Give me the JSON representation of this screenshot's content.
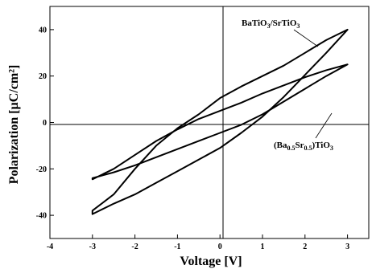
{
  "chart_data": {
    "type": "line",
    "xlabel": "Voltage [V]",
    "ylabel": "Polarization [µC/cm²]",
    "xlim": [
      -4,
      3.5
    ],
    "ylim": [
      -50,
      50
    ],
    "x_ticks": [
      "-4",
      "-3",
      "-2",
      "-1",
      "0",
      "1",
      "2",
      "3"
    ],
    "y_ticks": [
      "40",
      "20",
      "0",
      "-20",
      "-40"
    ],
    "grid": false,
    "reference_lines": {
      "x": 0,
      "y": 0
    },
    "series": [
      {
        "name": "BaTiO3/SrTiO3",
        "label_parts": {
          "a": "BaTiO",
          "a_sub": "3",
          "b": "/SrTiO",
          "b_sub": "3"
        },
        "color": "#000000",
        "upper_branch": {
          "x": [
            -3.0,
            -2.5,
            -2.0,
            -1.5,
            -1.0,
            -0.5,
            0.0,
            0.5,
            1.0,
            1.5,
            2.0,
            2.5,
            3.0
          ],
          "y": [
            -38,
            -31,
            -20,
            -10,
            -2.5,
            3.5,
            10.5,
            15.5,
            20,
            24.5,
            30,
            35.5,
            40
          ]
        },
        "lower_branch": {
          "x": [
            3.0,
            2.5,
            2.0,
            1.5,
            1.0,
            0.5,
            0.0,
            -0.5,
            -1.0,
            -1.5,
            -2.0,
            -2.5,
            -3.0
          ],
          "y": [
            40,
            30,
            20.5,
            11,
            2.5,
            -4.5,
            -11,
            -16,
            -21,
            -26,
            -31,
            -35,
            -39.5
          ]
        }
      },
      {
        "name": "(Ba0.5Sr0.5)TiO3",
        "label_parts": {
          "a": "(Ba",
          "a_sub": "0.5",
          "b": "Sr",
          "b_sub": "0.5",
          "c": ")TiO",
          "c_sub": "3"
        },
        "color": "#000000",
        "upper_branch": {
          "x": [
            -3.0,
            -2.5,
            -2.0,
            -1.5,
            -1.0,
            -0.5,
            0.0,
            0.5,
            1.0,
            1.5,
            2.0,
            2.5,
            3.0
          ],
          "y": [
            -24.5,
            -20,
            -14,
            -8,
            -3,
            1.5,
            5,
            8.5,
            12.5,
            16,
            19.5,
            22.5,
            25
          ]
        },
        "lower_branch": {
          "x": [
            3.0,
            2.5,
            2.0,
            1.5,
            1.0,
            0.5,
            0.0,
            -0.5,
            -1.0,
            -1.5,
            -2.0,
            -2.5,
            -3.0
          ],
          "y": [
            25,
            20,
            14.5,
            9,
            3.5,
            -1,
            -4.5,
            -8,
            -11.5,
            -15,
            -18.5,
            -21.5,
            -24
          ]
        }
      }
    ]
  }
}
